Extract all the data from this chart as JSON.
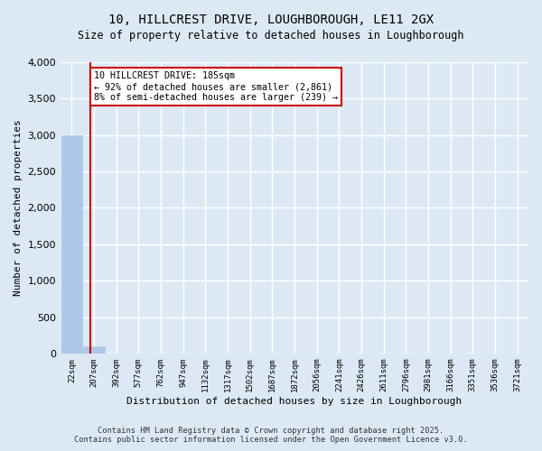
{
  "title_line1": "10, HILLCREST DRIVE, LOUGHBOROUGH, LE11 2GX",
  "title_line2": "Size of property relative to detached houses in Loughborough",
  "xlabel": "Distribution of detached houses by size in Loughborough",
  "ylabel": "Number of detached properties",
  "footnote1": "Contains HM Land Registry data © Crown copyright and database right 2025.",
  "footnote2": "Contains public sector information licensed under the Open Government Licence v3.0.",
  "bin_labels": [
    "22sqm",
    "207sqm",
    "392sqm",
    "577sqm",
    "762sqm",
    "947sqm",
    "1132sqm",
    "1317sqm",
    "1502sqm",
    "1687sqm",
    "1872sqm",
    "2056sqm",
    "2241sqm",
    "2426sqm",
    "2611sqm",
    "2796sqm",
    "2981sqm",
    "3166sqm",
    "3351sqm",
    "3536sqm",
    "3721sqm"
  ],
  "bar_heights": [
    3000,
    100,
    0,
    0,
    0,
    0,
    0,
    0,
    0,
    0,
    0,
    0,
    0,
    0,
    0,
    0,
    0,
    0,
    0,
    0,
    0
  ],
  "bar_color": "#aec6e8",
  "bar_edge_color": "#aec6e8",
  "background_color": "#dce9f5",
  "grid_color": "#ffffff",
  "property_line_x": 0.85,
  "property_line_color": "#cc0000",
  "annotation_text": "10 HILLCREST DRIVE: 185sqm\n← 92% of detached houses are smaller (2,861)\n8% of semi-detached houses are larger (239) →",
  "annotation_box_color": "#cc0000",
  "annotation_fill": "#ffffff",
  "ylim": [
    0,
    4000
  ],
  "yticks": [
    0,
    500,
    1000,
    1500,
    2000,
    2500,
    3000,
    3500,
    4000
  ]
}
